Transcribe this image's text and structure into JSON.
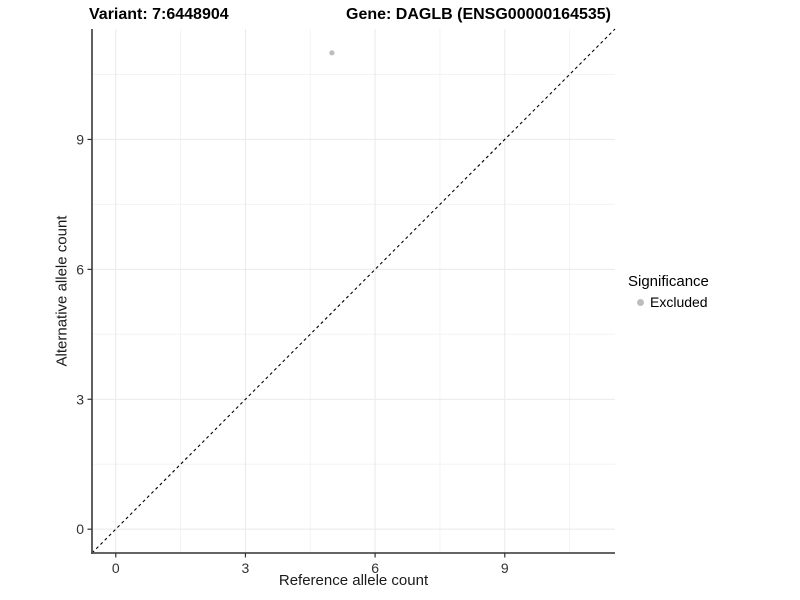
{
  "titles": {
    "variant": "Variant: 7:6448904",
    "gene": "Gene: DAGLB (ENSG00000164535)"
  },
  "chart_data": {
    "type": "scatter",
    "title_left": "Variant: 7:6448904",
    "title_right": "Gene: DAGLB (ENSG00000164535)",
    "xlabel": "Reference allele count",
    "ylabel": "Alternative allele count",
    "xlim": [
      -0.55,
      11.55
    ],
    "ylim": [
      -0.55,
      11.55
    ],
    "xticks": [
      0,
      3,
      6,
      9
    ],
    "yticks": [
      0,
      3,
      6,
      9
    ],
    "minor_ticks": [
      1.5,
      4.5,
      7.5,
      10.5
    ],
    "grid": true,
    "points": [
      {
        "x": 5,
        "y": 11,
        "series": "Excluded",
        "color": "#bdbdbd"
      }
    ],
    "reference_line": {
      "type": "abline",
      "slope": 1,
      "intercept": 0,
      "style": "dashed",
      "color": "#000000"
    },
    "legend": {
      "title": "Significance",
      "position": "right",
      "entries": [
        {
          "label": "Excluded",
          "color": "#bdbdbd"
        }
      ]
    },
    "colors": {
      "background": "#ffffff",
      "grid_major": "#e9e9e9",
      "grid_minor": "#f3f3f3",
      "axis_line": "#4f4f4f",
      "tick_text": "#333333"
    }
  }
}
